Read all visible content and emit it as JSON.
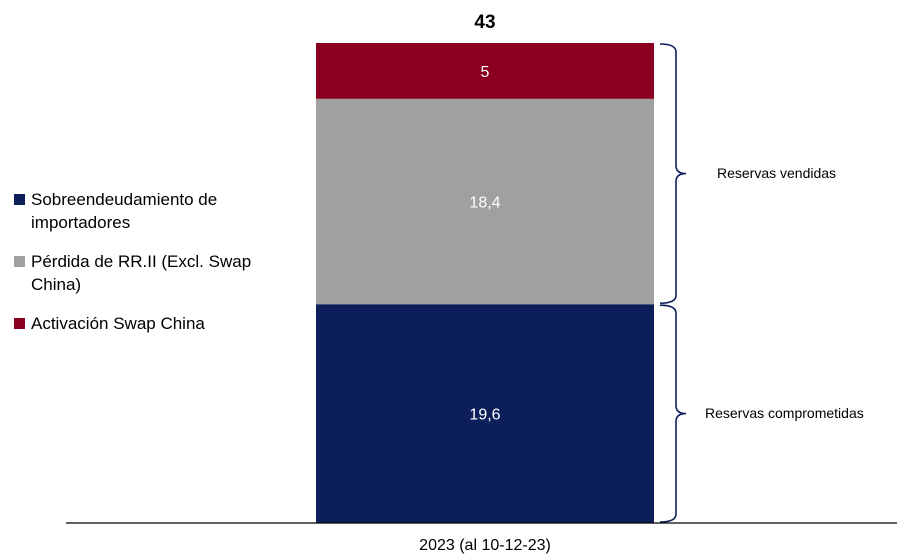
{
  "chart_data": {
    "type": "bar",
    "stacked": true,
    "categories": [
      "2023 (al 10-12-23)"
    ],
    "total": 43,
    "ylim": [
      0,
      43
    ],
    "series": [
      {
        "name": "Sobreendeudamiento de importadores",
        "values": [
          19.6
        ],
        "label": "19,6",
        "color": "#0c1f5a"
      },
      {
        "name": "Pérdida de RR.II (Excl. Swap China)",
        "values": [
          18.4
        ],
        "label": "18,4",
        "color": "#a0a0a0"
      },
      {
        "name": "Activación Swap China",
        "values": [
          5
        ],
        "label": "5",
        "color": "#8b0020"
      }
    ],
    "total_label": "43",
    "brackets": [
      {
        "label": "Reservas vendidas",
        "from": 19.6,
        "to": 43
      },
      {
        "label": "Reservas comprometidas",
        "from": 0,
        "to": 19.6
      }
    ],
    "legend": {
      "placement": "left"
    },
    "grid": false
  }
}
